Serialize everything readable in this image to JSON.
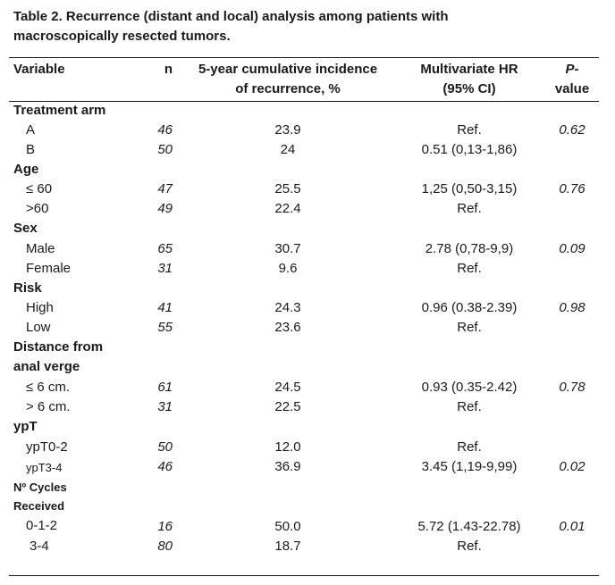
{
  "caption": {
    "line1": "Table 2. Recurrence (distant and local) analysis among patients with",
    "line2": "macroscopically resected tumors."
  },
  "header": {
    "variable": "Variable",
    "n": "n",
    "incidence_l1": "5-year cumulative incidence",
    "incidence_l2": "of recurrence, %",
    "hr_l1": "Multivariate HR",
    "hr_l2": "(95% CI)",
    "p_l1": "P-",
    "p_l2": "value"
  },
  "sections": [
    {
      "label": "Treatment arm",
      "rows": [
        {
          "label": "A",
          "n": "46",
          "incidence": "23.9",
          "hr": "Ref.",
          "p": "0.62"
        },
        {
          "label": "B",
          "n": "50",
          "incidence": "24",
          "hr": "0.51 (0,13-1,86)",
          "p": ""
        }
      ]
    },
    {
      "label": "Age",
      "rows": [
        {
          "label": "≤ 60",
          "n": "47",
          "incidence": "25.5",
          "hr": "1,25 (0,50-3,15)",
          "p": "0.76"
        },
        {
          "label": ">60",
          "n": "49",
          "incidence": "22.4",
          "hr": "Ref.",
          "p": ""
        }
      ]
    },
    {
      "label": "Sex",
      "rows": [
        {
          "label": "Male",
          "n": "65",
          "incidence": "30.7",
          "hr": "2.78 (0,78-9,9)",
          "p": "0.09"
        },
        {
          "label": "Female",
          "n": "31",
          "incidence": "9.6",
          "hr": "Ref.",
          "p": ""
        }
      ]
    },
    {
      "label": "Risk",
      "rows": [
        {
          "label": "High",
          "n": "41",
          "incidence": "24.3",
          "hr": "0.96 (0.38-2.39)",
          "p": "0.98"
        },
        {
          "label": "Low",
          "n": "55",
          "incidence": "23.6",
          "hr": "Ref.",
          "p": ""
        }
      ]
    },
    {
      "label_l1": "Distance from",
      "label_l2": "anal verge",
      "rows": [
        {
          "label": "≤ 6 cm.",
          "n": "61",
          "incidence": "24.5",
          "hr": "0.93 (0.35-2.42)",
          "p": "0.78"
        },
        {
          "label": "> 6 cm.",
          "n": "31",
          "incidence": "22.5",
          "hr": "Ref.",
          "p": ""
        }
      ]
    },
    {
      "label": "ypT",
      "rows": [
        {
          "label": "ypT0-2",
          "n": "50",
          "incidence": "12.0",
          "hr": "Ref.",
          "p": ""
        },
        {
          "label": "ypT3-4",
          "n": "46",
          "incidence": "36.9",
          "hr": "3.45 (1,19-9,99)",
          "p": "0.02"
        }
      ]
    },
    {
      "label_l1": "Nº Cycles",
      "label_l2": "Received",
      "rows": [
        {
          "label": "0-1-2",
          "n": "16",
          "incidence": "50.0",
          "hr": "5.72 (1.43-22.78)",
          "p": "0.01"
        },
        {
          "label": "3-4",
          "n": "80",
          "incidence": "18.7",
          "hr": "Ref.",
          "p": ""
        }
      ]
    }
  ]
}
